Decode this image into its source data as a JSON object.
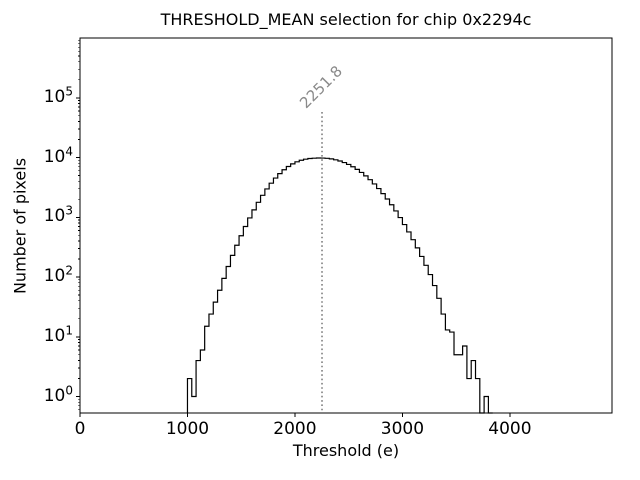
{
  "title": "THRESHOLD_MEAN selection for chip 0x2294c",
  "xlabel": "Threshold (e)",
  "ylabel": "Number of pixels",
  "annotation": {
    "text": "2251.8"
  },
  "colors": {
    "hist": "#000000",
    "vline": "#7f7f7f",
    "annotation": "#8a8a8a",
    "axes": "#000000"
  },
  "xticks": [
    {
      "value": 0,
      "label": "0"
    },
    {
      "value": 1000,
      "label": "1000"
    },
    {
      "value": 2000,
      "label": "2000"
    },
    {
      "value": 3000,
      "label": "3000"
    },
    {
      "value": 4000,
      "label": "4000"
    }
  ],
  "yticks": [
    {
      "value": 1,
      "base": "10",
      "exp": "0"
    },
    {
      "value": 10,
      "base": "10",
      "exp": "1"
    },
    {
      "value": 100,
      "base": "10",
      "exp": "2"
    },
    {
      "value": 1000,
      "base": "10",
      "exp": "3"
    },
    {
      "value": 10000,
      "base": "10",
      "exp": "4"
    },
    {
      "value": 100000,
      "base": "10",
      "exp": "5"
    }
  ],
  "chart_data": {
    "type": "bar",
    "style": "step-histogram",
    "title": "THRESHOLD_MEAN selection for chip 0x2294c",
    "xlabel": "Threshold (e)",
    "ylabel": "Number of pixels",
    "yscale": "log",
    "grid": false,
    "legend": null,
    "xlim": [
      0,
      4950
    ],
    "ylim": [
      0.53,
      1000000
    ],
    "bin_start": 1000,
    "bin_width": 40,
    "counts": [
      2,
      1,
      4,
      6,
      15,
      24,
      38,
      60,
      95,
      150,
      230,
      340,
      490,
      700,
      975,
      1330,
      1780,
      2330,
      2980,
      3720,
      4530,
      5380,
      6240,
      7070,
      7820,
      8470,
      8990,
      9370,
      9620,
      9750,
      9800,
      9790,
      9690,
      9480,
      9160,
      8740,
      8230,
      7650,
      7010,
      6330,
      5630,
      4930,
      4250,
      3610,
      3020,
      2490,
      2020,
      1620,
      1275,
      988,
      755,
      568,
      421,
      307,
      221,
      157,
      110,
      72,
      44,
      24,
      13,
      12,
      5,
      5,
      7,
      2,
      4,
      2,
      0,
      1,
      0
    ],
    "vline_x": 2251.8,
    "vline_label": "2251.8"
  }
}
